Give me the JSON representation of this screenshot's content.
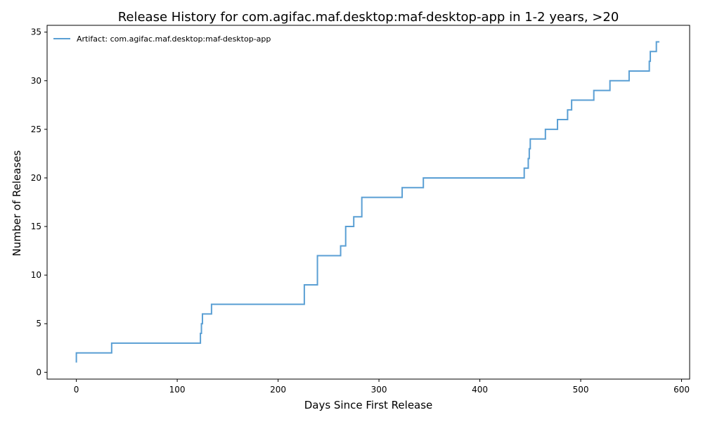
{
  "chart_data": {
    "type": "line",
    "step": "post",
    "title": "Release History for com.agifac.maf.desktop:maf-desktop-app in 1-2 years, >20",
    "xlabel": "Days Since First Release",
    "ylabel": "Number of Releases",
    "xlim": [
      -29,
      608
    ],
    "ylim": [
      -0.7,
      35.7
    ],
    "xticks": [
      0,
      100,
      200,
      300,
      400,
      500,
      600
    ],
    "yticks": [
      0,
      5,
      10,
      15,
      20,
      25,
      30,
      35
    ],
    "grid": false,
    "legend_position": "top-left",
    "series": [
      {
        "name": "Artifact: com.agifac.maf.desktop:maf-desktop-app",
        "color": "#5a9fd4",
        "x": [
          0,
          0,
          35,
          123,
          124,
          125,
          134,
          226,
          239,
          262,
          267,
          275,
          283,
          323,
          344,
          444,
          448,
          449,
          450,
          451,
          465,
          477,
          487,
          491,
          513,
          529,
          548,
          568,
          569,
          572,
          575,
          578
        ],
        "y": [
          1,
          2,
          3,
          4,
          5,
          6,
          7,
          9,
          12,
          13,
          15,
          16,
          18,
          19,
          20,
          21,
          22,
          23,
          24,
          24,
          25,
          26,
          27,
          28,
          29,
          30,
          31,
          32,
          33,
          33,
          34,
          34
        ]
      }
    ]
  }
}
